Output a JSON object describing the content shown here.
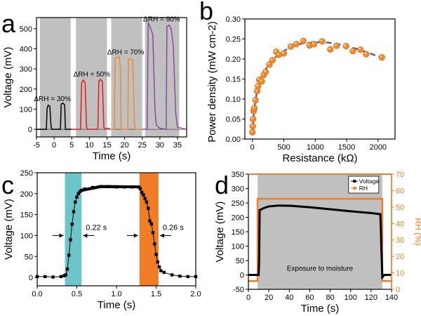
{
  "chart_data": [
    {
      "panel": "a",
      "type": "line",
      "xlabel": "Time (s)",
      "ylabel": "Voltage (mV)",
      "xlim": [
        -5,
        37.6
      ],
      "ylim": [
        -38,
        555
      ],
      "xticks": [
        -5,
        0,
        5,
        10,
        15,
        20,
        25,
        30,
        35
      ],
      "yticks": [
        0,
        100,
        200,
        300,
        400,
        500
      ],
      "bands": [
        [
          -4,
          4.7
        ],
        [
          6.2,
          15
        ],
        [
          16.2,
          25
        ],
        [
          25.8,
          35.5
        ]
      ],
      "band_color": "#c0c0c0",
      "series": [
        {
          "label": "ΔRH = 30%",
          "color": "#000000",
          "points": [
            [
              -5,
              0
            ],
            [
              -2.2,
              0
            ],
            [
              -2,
              100
            ],
            [
              -1.7,
              120
            ],
            [
              -1.2,
              115
            ],
            [
              -0.9,
              20
            ],
            [
              -0.7,
              0
            ],
            [
              1.8,
              0
            ],
            [
              2,
              125
            ],
            [
              2.5,
              130
            ],
            [
              3,
              120
            ],
            [
              3.2,
              0
            ],
            [
              5,
              0
            ]
          ],
          "label_at": [
            -0.5,
            140
          ]
        },
        {
          "label": "ΔRH = 50%",
          "color": "#e8191b",
          "points": [
            [
              5,
              0
            ],
            [
              7.5,
              0
            ],
            [
              7.8,
              230
            ],
            [
              8.3,
              245
            ],
            [
              8.8,
              230
            ],
            [
              9.2,
              10
            ],
            [
              9.5,
              0
            ],
            [
              12.4,
              0
            ],
            [
              12.7,
              240
            ],
            [
              13.2,
              248
            ],
            [
              13.7,
              235
            ],
            [
              14.1,
              10
            ],
            [
              14.5,
              0
            ],
            [
              15.2,
              5
            ],
            [
              16,
              0
            ]
          ],
          "label_at": [
            10.7,
            262
          ]
        },
        {
          "label": "ΔRH = 70%",
          "color": "#f28a2a",
          "points": [
            [
              16,
              0
            ],
            [
              17.1,
              0
            ],
            [
              17.3,
              355
            ],
            [
              18.5,
              360
            ],
            [
              18.8,
              300
            ],
            [
              19,
              0
            ],
            [
              20.9,
              0
            ],
            [
              21.1,
              350
            ],
            [
              22.3,
              345
            ],
            [
              22.8,
              20
            ],
            [
              23,
              0
            ],
            [
              25,
              0
            ]
          ],
          "label_at": [
            20.3,
            372
          ]
        },
        {
          "label": "ΔRH = 90%",
          "color": "#8b4b9c",
          "points": [
            [
              25,
              0
            ],
            [
              26.4,
              0
            ],
            [
              26.7,
              530
            ],
            [
              27.1,
              515
            ],
            [
              27.4,
              500
            ],
            [
              28,
              470
            ],
            [
              28.6,
              100
            ],
            [
              29,
              20
            ],
            [
              30,
              5
            ],
            [
              31.8,
              0
            ],
            [
              32,
              510
            ],
            [
              32.6,
              518
            ],
            [
              33.2,
              500
            ],
            [
              33.8,
              420
            ],
            [
              34.5,
              80
            ],
            [
              35,
              10
            ],
            [
              37.5,
              0
            ]
          ],
          "label_at": [
            30.5,
            535
          ]
        }
      ]
    },
    {
      "panel": "b",
      "type": "scatter",
      "xlabel": "Resistance (kΩ)",
      "ylabel": "Power density (mW cm-2)",
      "xlim": [
        -120,
        2270
      ],
      "ylim": [
        0,
        0.3
      ],
      "xticks": [
        0,
        500,
        1000,
        1500,
        2000
      ],
      "yticks": [
        0,
        0.05,
        0.1,
        0.15,
        0.2,
        0.25,
        0.3
      ],
      "ytick_labels": [
        "0.00",
        "0.05",
        "0.10",
        "0.15",
        "0.20",
        "0.25",
        "0.30"
      ],
      "marker_color": "#f08a2a",
      "fit_color": "#6a3d9a",
      "points": [
        [
          0,
          0.017
        ],
        [
          5,
          0.032
        ],
        [
          10,
          0.05
        ],
        [
          20,
          0.07
        ],
        [
          30,
          0.077
        ],
        [
          50,
          0.097
        ],
        [
          75,
          0.12
        ],
        [
          90,
          0.132
        ],
        [
          110,
          0.148
        ],
        [
          150,
          0.144
        ],
        [
          180,
          0.16
        ],
        [
          210,
          0.168
        ],
        [
          270,
          0.186
        ],
        [
          320,
          0.197
        ],
        [
          380,
          0.218
        ],
        [
          420,
          0.21
        ],
        [
          500,
          0.214
        ],
        [
          610,
          0.231
        ],
        [
          700,
          0.237
        ],
        [
          810,
          0.245
        ],
        [
          910,
          0.234
        ],
        [
          980,
          0.237
        ],
        [
          1110,
          0.244
        ],
        [
          1240,
          0.224
        ],
        [
          1340,
          0.233
        ],
        [
          1490,
          0.232
        ],
        [
          1600,
          0.22
        ],
        [
          1720,
          0.223
        ],
        [
          1810,
          0.212
        ],
        [
          2060,
          0.204
        ]
      ],
      "fit": [
        [
          0,
          0.012
        ],
        [
          20,
          0.06
        ],
        [
          50,
          0.1
        ],
        [
          100,
          0.138
        ],
        [
          200,
          0.172
        ],
        [
          300,
          0.195
        ],
        [
          400,
          0.21
        ],
        [
          500,
          0.22
        ],
        [
          600,
          0.229
        ],
        [
          700,
          0.235
        ],
        [
          800,
          0.239
        ],
        [
          1000,
          0.242
        ],
        [
          1200,
          0.241
        ],
        [
          1400,
          0.236
        ],
        [
          1600,
          0.228
        ],
        [
          1800,
          0.218
        ],
        [
          2060,
          0.203
        ]
      ]
    },
    {
      "panel": "c",
      "type": "line",
      "xlabel": "Time (s)",
      "ylabel": "Voltage (mV)",
      "xlim": [
        0,
        2
      ],
      "ylim": [
        -20,
        250
      ],
      "xticks": [
        0,
        0.5,
        1,
        1.5,
        2
      ],
      "xtick_labels": [
        "0.0",
        "0.5",
        "1.0",
        "1.5",
        "2.0"
      ],
      "yticks": [
        0,
        50,
        100,
        150,
        200,
        250
      ],
      "bands": [
        {
          "range": [
            0.35,
            0.56
          ],
          "color": "#6cc5c8",
          "label": "0.22 s"
        },
        {
          "range": [
            1.29,
            1.53
          ],
          "color": "#f07d26",
          "label": "0.26 s"
        }
      ],
      "points": [
        [
          0,
          2
        ],
        [
          0.1,
          2
        ],
        [
          0.2,
          1
        ],
        [
          0.3,
          2
        ],
        [
          0.34,
          4
        ],
        [
          0.36,
          6
        ],
        [
          0.38,
          20
        ],
        [
          0.4,
          53
        ],
        [
          0.42,
          90
        ],
        [
          0.44,
          127
        ],
        [
          0.46,
          157
        ],
        [
          0.48,
          180
        ],
        [
          0.5,
          192
        ],
        [
          0.52,
          200
        ],
        [
          0.54,
          205
        ],
        [
          0.56,
          208
        ],
        [
          0.6,
          211
        ],
        [
          0.7,
          215
        ],
        [
          0.8,
          217
        ],
        [
          0.9,
          217
        ],
        [
          1.0,
          216
        ],
        [
          1.1,
          216
        ],
        [
          1.2,
          216
        ],
        [
          1.28,
          216
        ],
        [
          1.3,
          212
        ],
        [
          1.32,
          203
        ],
        [
          1.34,
          197
        ],
        [
          1.36,
          188
        ],
        [
          1.38,
          180
        ],
        [
          1.4,
          165
        ],
        [
          1.42,
          135
        ],
        [
          1.44,
          128
        ],
        [
          1.46,
          107
        ],
        [
          1.48,
          80
        ],
        [
          1.5,
          55
        ],
        [
          1.52,
          37
        ],
        [
          1.54,
          25
        ],
        [
          1.56,
          16
        ],
        [
          1.6,
          12
        ],
        [
          1.7,
          6
        ],
        [
          1.8,
          3
        ],
        [
          1.9,
          2
        ],
        [
          2.0,
          2
        ]
      ]
    },
    {
      "panel": "d",
      "type": "line",
      "xlabel": "Time (s)",
      "ylabel": "Voltage (mV)",
      "y2label": "RH (%)",
      "xlim": [
        0,
        140
      ],
      "ylim": [
        -50,
        350
      ],
      "y2lim": [
        0,
        70
      ],
      "xticks": [
        0,
        20,
        40,
        60,
        80,
        100,
        120,
        140
      ],
      "yticks": [
        -50,
        0,
        50,
        100,
        150,
        200,
        250,
        300,
        350
      ],
      "y2ticks": [
        0,
        10,
        20,
        30,
        40,
        50,
        60,
        70
      ],
      "band": [
        9,
        131
      ],
      "annotation": "Exposure to moisture",
      "legend": "top-right",
      "axis2_color": "#f07d26",
      "series": [
        {
          "name": "Voltage",
          "color": "#000000",
          "points": [
            [
              0,
              0
            ],
            [
              10,
              0
            ],
            [
              10.5,
              50
            ],
            [
              11,
              225
            ],
            [
              15,
              232
            ],
            [
              20,
              238
            ],
            [
              30,
              241
            ],
            [
              42,
              240
            ],
            [
              60,
              235
            ],
            [
              80,
              228
            ],
            [
              100,
              221
            ],
            [
              120,
              215
            ],
            [
              129,
              211
            ],
            [
              129.5,
              170
            ],
            [
              130,
              100
            ],
            [
              131,
              -8
            ],
            [
              133,
              0
            ],
            [
              140,
              0
            ]
          ]
        },
        {
          "name": "RH",
          "color": "#f07d26",
          "axis": "right",
          "points": [
            [
              0,
              5
            ],
            [
              9,
              5
            ],
            [
              9,
              55
            ],
            [
              131,
              55
            ],
            [
              131,
              5
            ],
            [
              140,
              5
            ]
          ]
        }
      ]
    }
  ],
  "panel_labels": [
    "a",
    "b",
    "c",
    "d"
  ]
}
